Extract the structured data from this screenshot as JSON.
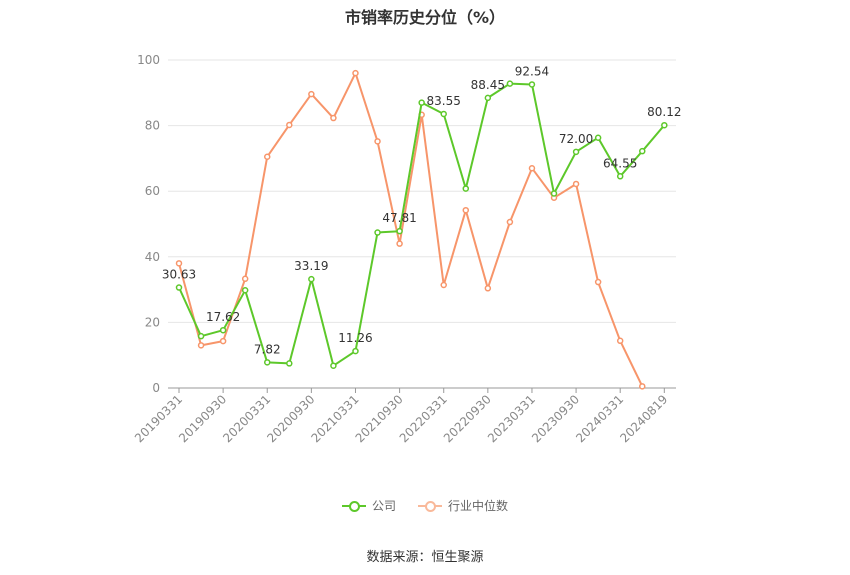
{
  "chart_data": {
    "type": "line",
    "title": "市销率历史分位（%）",
    "x_ticks": [
      "20190331",
      "20190930",
      "20200331",
      "20200930",
      "20210331",
      "20210930",
      "20220331",
      "20220930",
      "20230331",
      "20230930",
      "20240331",
      "20240819"
    ],
    "y_ticks": [
      "0",
      "20",
      "40",
      "60",
      "80",
      "100"
    ],
    "ylim": [
      0,
      100
    ],
    "grid": true,
    "legend_position": "bottom",
    "series": [
      {
        "name": "公司",
        "color": "#5dc82a",
        "values": [
          30.63,
          15.8,
          17.62,
          29.8,
          7.82,
          7.5,
          33.19,
          6.8,
          11.26,
          47.4,
          47.81,
          87.0,
          83.55,
          60.8,
          88.45,
          92.8,
          92.54,
          59.3,
          72.0,
          76.3,
          64.55,
          72.2,
          80.12
        ],
        "labels": [
          "30.63",
          "",
          "17.62",
          "",
          "7.82",
          "",
          "33.19",
          "",
          "11.26",
          "",
          "47.81",
          "",
          "83.55",
          "",
          "88.45",
          "",
          "92.54",
          "",
          "72.00",
          "",
          "64.55",
          "",
          "80.12"
        ]
      },
      {
        "name": "行业中位数",
        "color": "#f7956a",
        "values": [
          38.0,
          13.0,
          14.3,
          33.3,
          70.5,
          80.2,
          89.6,
          82.3,
          96.0,
          75.2,
          44.0,
          83.3,
          31.4,
          54.2,
          30.4,
          50.6,
          67.0,
          58.0,
          62.2,
          32.3,
          14.4,
          0.5
        ]
      }
    ]
  },
  "source": "数据来源：恒生聚源"
}
